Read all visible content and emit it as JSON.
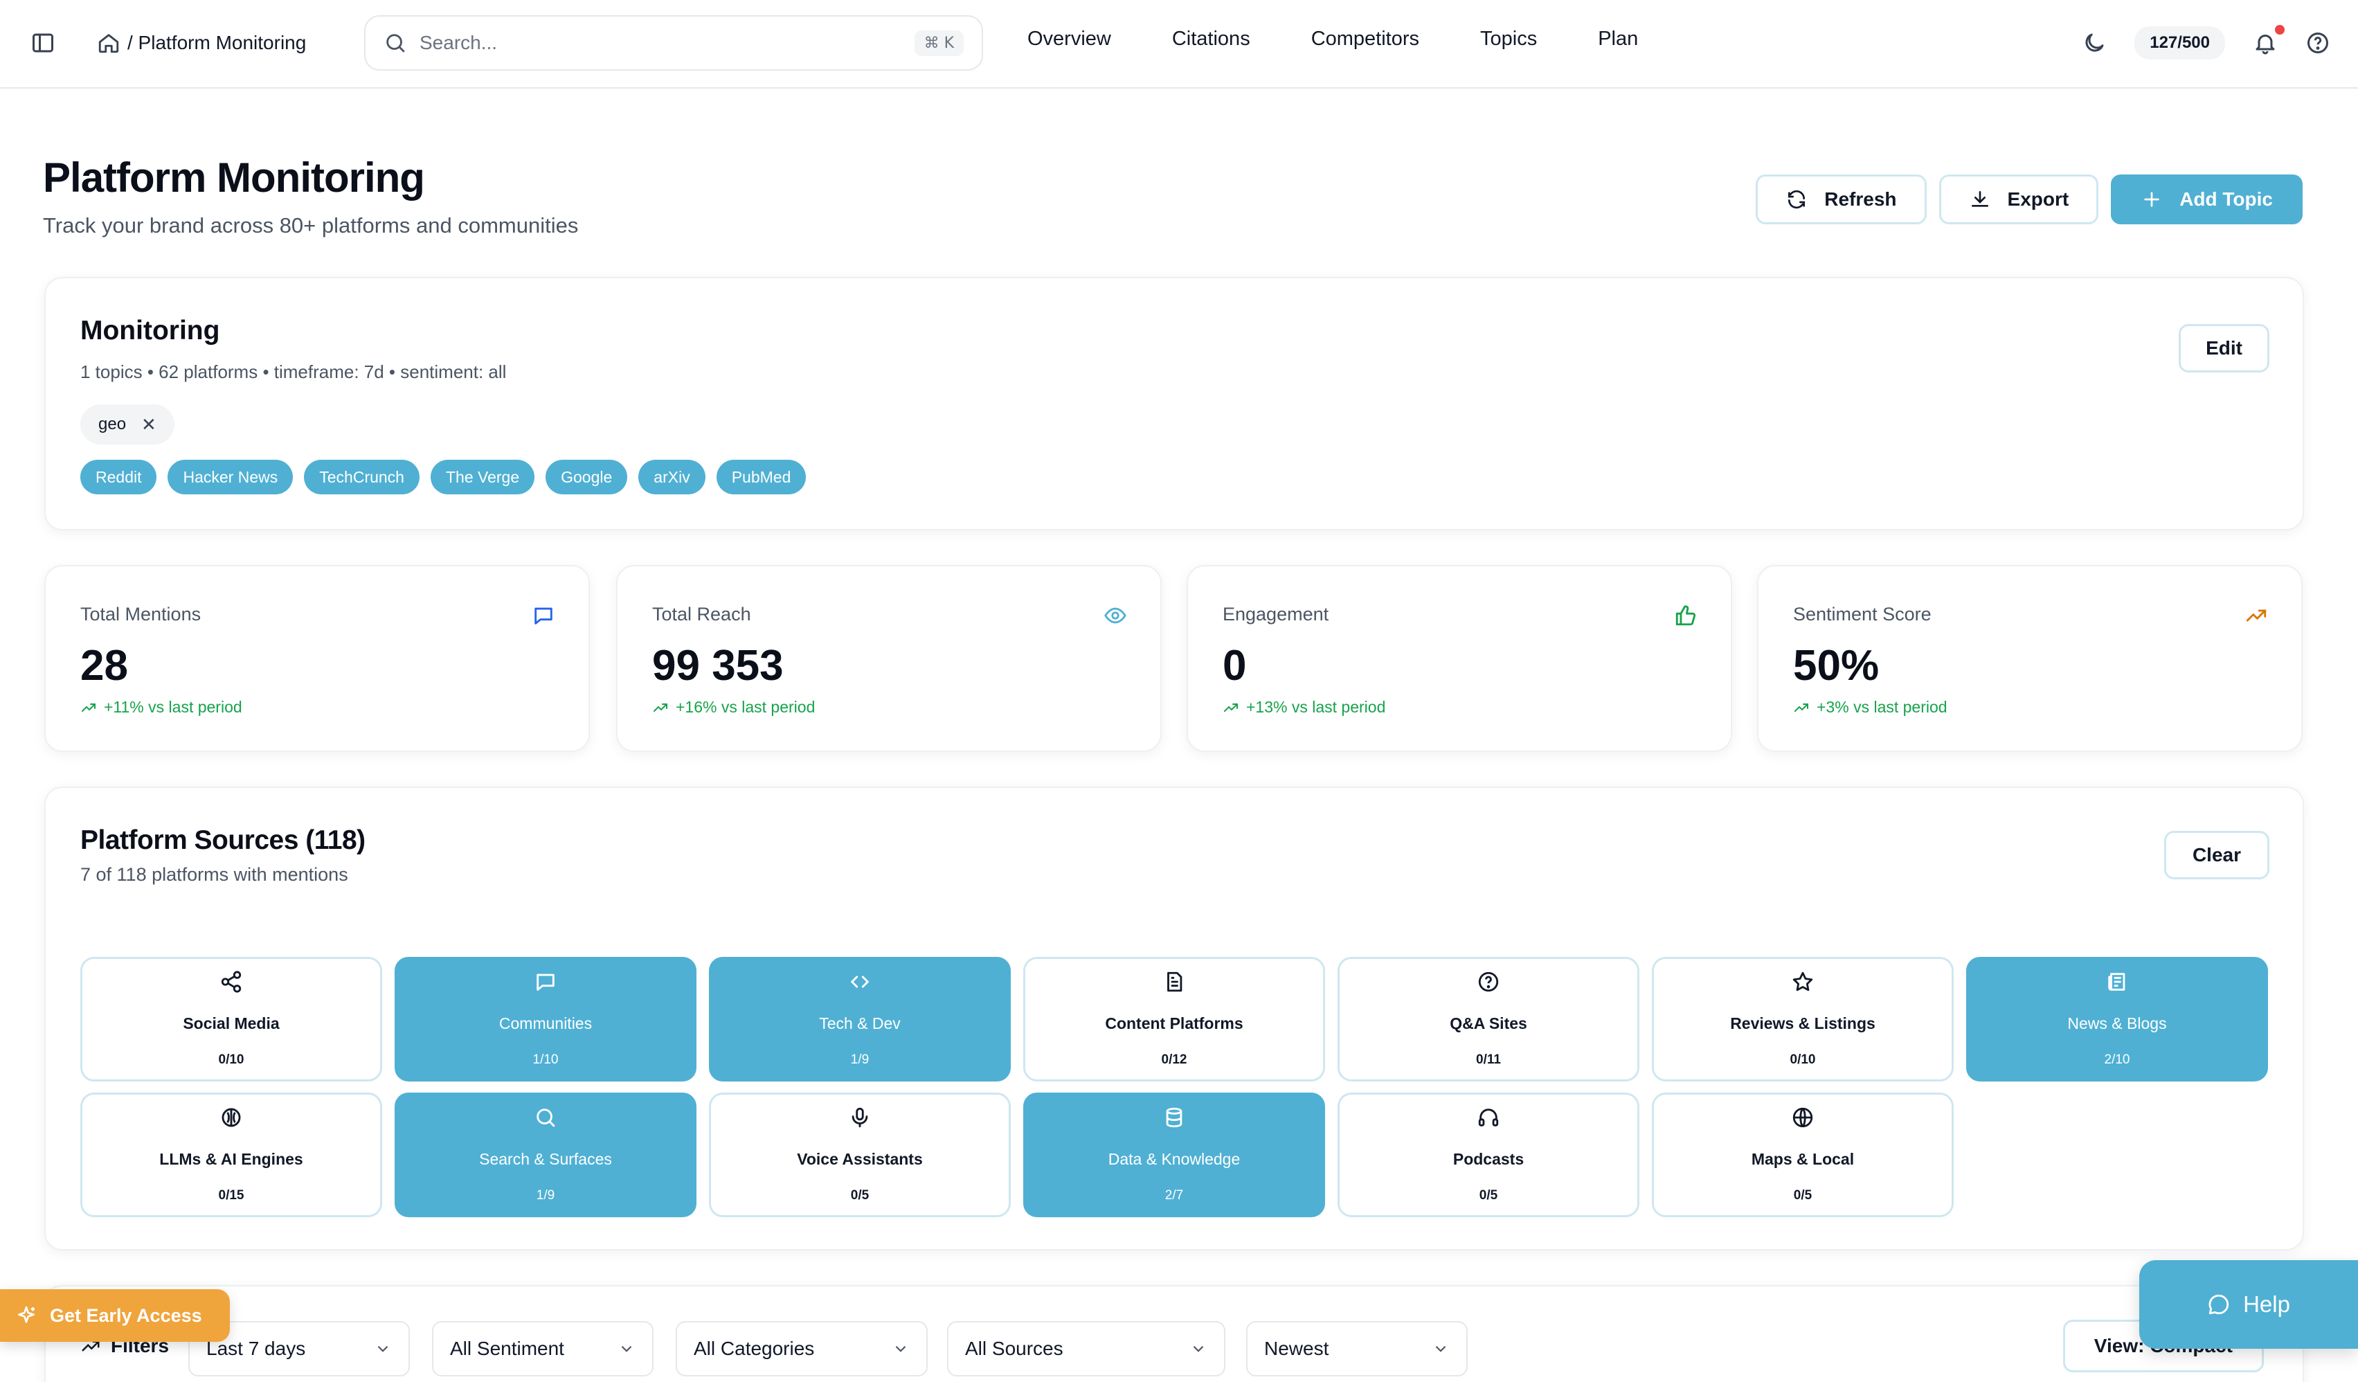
{
  "topbar": {
    "breadcrumb": "/ Platform Monitoring",
    "search_placeholder": "Search...",
    "search_shortcut": "⌘ K",
    "nav": [
      "Overview",
      "Citations",
      "Competitors",
      "Topics",
      "Plan"
    ],
    "quota": "127/500"
  },
  "header": {
    "title": "Platform Monitoring",
    "subtitle": "Track your brand across 80+ platforms and communities",
    "refresh_label": "Refresh",
    "export_label": "Export",
    "add_topic_label": "Add Topic"
  },
  "monitoring": {
    "title": "Monitoring",
    "meta": "1 topics • 62 platforms • timeframe: 7d • sentiment: all",
    "edit_label": "Edit",
    "topic_chip": "geo",
    "platform_tags": [
      "Reddit",
      "Hacker News",
      "TechCrunch",
      "The Verge",
      "Google",
      "arXiv",
      "PubMed"
    ]
  },
  "stats": [
    {
      "label": "Total Mentions",
      "value": "28",
      "delta": "+11% vs last period",
      "icon": "message-icon",
      "icon_color": "#2563eb"
    },
    {
      "label": "Total Reach",
      "value": "99 353",
      "delta": "+16% vs last period",
      "icon": "eye-icon",
      "icon_color": "#4fb0d3"
    },
    {
      "label": "Engagement",
      "value": "0",
      "delta": "+13% vs last period",
      "icon": "thumbs-up-icon",
      "icon_color": "#16a34a"
    },
    {
      "label": "Sentiment Score",
      "value": "50%",
      "delta": "+3% vs last period",
      "icon": "trending-up-icon",
      "icon_color": "#d97706"
    }
  ],
  "sources": {
    "title": "Platform Sources (118)",
    "meta": "7 of 118 platforms with mentions",
    "clear_label": "Clear",
    "categories": [
      {
        "name": "Social Media",
        "count": "0/10",
        "icon": "share-icon",
        "active": false
      },
      {
        "name": "Communities",
        "count": "1/10",
        "icon": "message-icon",
        "active": true
      },
      {
        "name": "Tech & Dev",
        "count": "1/9",
        "icon": "code-icon",
        "active": true
      },
      {
        "name": "Content Platforms",
        "count": "0/12",
        "icon": "document-icon",
        "active": false
      },
      {
        "name": "Q&A Sites",
        "count": "0/11",
        "icon": "question-icon",
        "active": false
      },
      {
        "name": "Reviews & Listings",
        "count": "0/10",
        "icon": "star-icon",
        "active": false
      },
      {
        "name": "News & Blogs",
        "count": "2/10",
        "icon": "newspaper-icon",
        "active": true
      },
      {
        "name": "LLMs & AI Engines",
        "count": "0/15",
        "icon": "ai-brain-icon",
        "active": false
      },
      {
        "name": "Search & Surfaces",
        "count": "1/9",
        "icon": "search-icon",
        "active": true
      },
      {
        "name": "Voice Assistants",
        "count": "0/5",
        "icon": "microphone-icon",
        "active": false
      },
      {
        "name": "Data & Knowledge",
        "count": "2/7",
        "icon": "database-icon",
        "active": true
      },
      {
        "name": "Podcasts",
        "count": "0/5",
        "icon": "headphones-icon",
        "active": false
      },
      {
        "name": "Maps & Local",
        "count": "0/5",
        "icon": "globe-icon",
        "active": false
      }
    ]
  },
  "filters": {
    "label": "Filters",
    "timeframe": "Last 7 days",
    "sentiment": "All Sentiment",
    "category": "All Categories",
    "source": "All Sources",
    "sort": "Newest",
    "view_label": "View: Compact"
  },
  "floating": {
    "early_access_label": "Get Early Access",
    "help_label": "Help"
  },
  "colors": {
    "accent": "#4fb0d3",
    "positive": "#16a34a",
    "early_access": "#f0a43c"
  }
}
